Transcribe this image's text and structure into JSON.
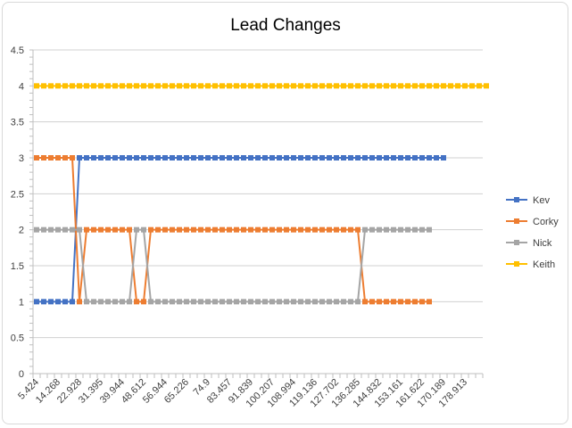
{
  "chart_data": {
    "type": "line",
    "title": "Lead Changes",
    "xlabel": "",
    "ylabel": "",
    "ylim": [
      0,
      4.5
    ],
    "yticks": [
      0,
      0.5,
      1,
      1.5,
      2,
      2.5,
      3,
      3.5,
      4,
      4.5
    ],
    "grid": true,
    "legend_position": "right",
    "x_tick_labels": [
      "5.424",
      "14.268",
      "22.928",
      "31.395",
      "39.944",
      "48.612",
      "56.944",
      "65.226",
      "74.9",
      "83.457",
      "91.839",
      "100.207",
      "108.994",
      "119.136",
      "127.702",
      "136.285",
      "144.832",
      "153.161",
      "161.622",
      "170.189",
      "178.913"
    ],
    "series": [
      {
        "name": "Kev",
        "color": "#4472C4",
        "marker": "square",
        "values": [
          1,
          1,
          1,
          1,
          1,
          1,
          3,
          3,
          3,
          3,
          3,
          3,
          3,
          3,
          3,
          3,
          3,
          3,
          3,
          3,
          3,
          3,
          3,
          3,
          3,
          3,
          3,
          3,
          3,
          3,
          3,
          3,
          3,
          3,
          3,
          3,
          3,
          3,
          3,
          3,
          3,
          3,
          3,
          3,
          3,
          3,
          3,
          3,
          3,
          3,
          3,
          3,
          3,
          3,
          3,
          3,
          3,
          3
        ]
      },
      {
        "name": "Corky",
        "color": "#ED7D31",
        "marker": "square",
        "values": [
          3,
          3,
          3,
          3,
          3,
          3,
          1,
          2,
          2,
          2,
          2,
          2,
          2,
          2,
          1,
          1,
          2,
          2,
          2,
          2,
          2,
          2,
          2,
          2,
          2,
          2,
          2,
          2,
          2,
          2,
          2,
          2,
          2,
          2,
          2,
          2,
          2,
          2,
          2,
          2,
          2,
          2,
          2,
          2,
          2,
          2,
          1,
          1,
          1,
          1,
          1,
          1,
          1,
          1,
          1,
          1
        ]
      },
      {
        "name": "Nick",
        "color": "#A5A5A5",
        "marker": "square",
        "values": [
          2,
          2,
          2,
          2,
          2,
          2,
          2,
          1,
          1,
          1,
          1,
          1,
          1,
          1,
          2,
          2,
          1,
          1,
          1,
          1,
          1,
          1,
          1,
          1,
          1,
          1,
          1,
          1,
          1,
          1,
          1,
          1,
          1,
          1,
          1,
          1,
          1,
          1,
          1,
          1,
          1,
          1,
          1,
          1,
          1,
          1,
          2,
          2,
          2,
          2,
          2,
          2,
          2,
          2,
          2,
          2
        ]
      },
      {
        "name": "Keith",
        "color": "#FFC000",
        "marker": "square",
        "values": [
          4,
          4,
          4,
          4,
          4,
          4,
          4,
          4,
          4,
          4,
          4,
          4,
          4,
          4,
          4,
          4,
          4,
          4,
          4,
          4,
          4,
          4,
          4,
          4,
          4,
          4,
          4,
          4,
          4,
          4,
          4,
          4,
          4,
          4,
          4,
          4,
          4,
          4,
          4,
          4,
          4,
          4,
          4,
          4,
          4,
          4,
          4,
          4,
          4,
          4,
          4,
          4,
          4,
          4,
          4,
          4,
          4,
          4,
          4,
          4,
          4,
          4,
          4,
          4
        ]
      }
    ]
  }
}
